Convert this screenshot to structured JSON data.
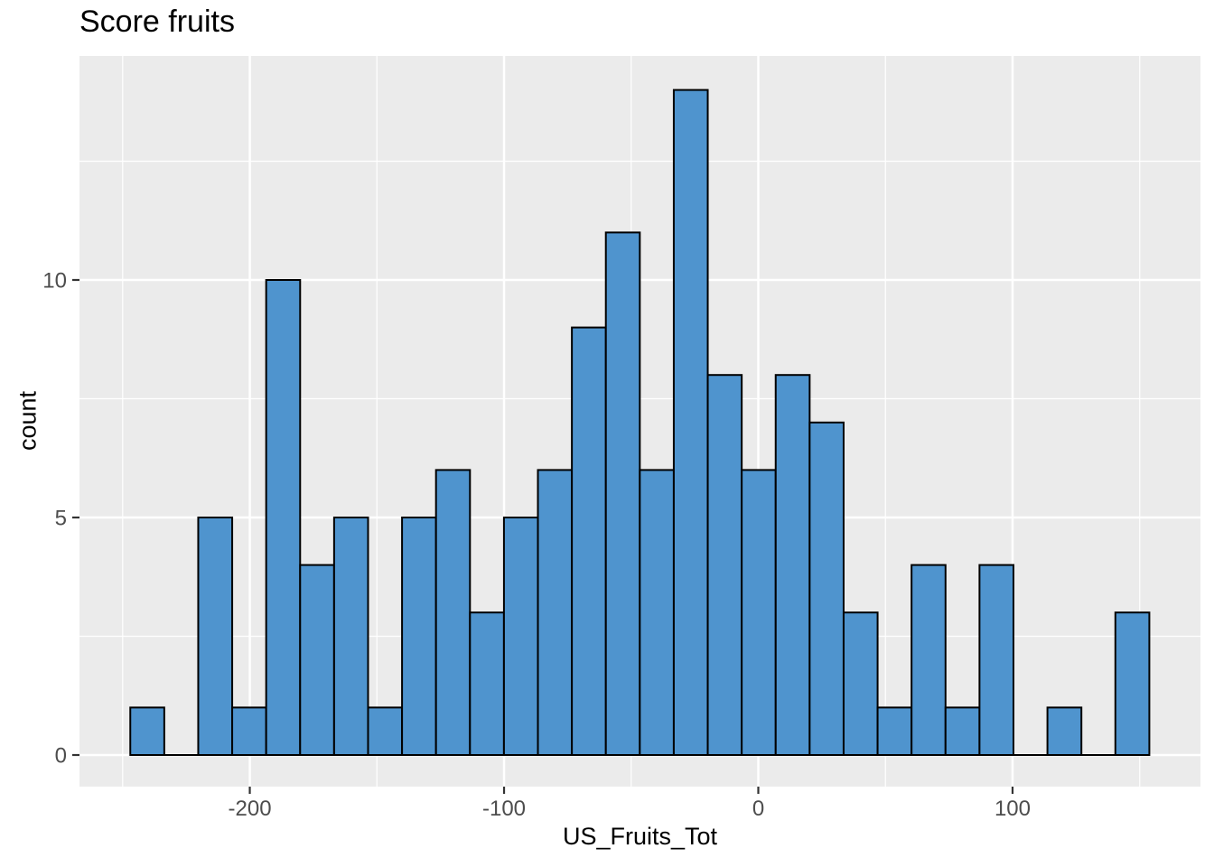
{
  "chart_data": {
    "type": "bar",
    "subtype": "histogram",
    "title": "Score fruits",
    "xlabel": "US_Fruits_Tot",
    "ylabel": "count",
    "bins": 30,
    "bin_start": -247,
    "bin_width": 13.36,
    "counts": [
      1,
      0,
      5,
      1,
      10,
      4,
      5,
      1,
      5,
      6,
      3,
      5,
      6,
      9,
      11,
      6,
      14,
      8,
      6,
      8,
      7,
      3,
      1,
      4,
      1,
      4,
      0,
      1,
      0,
      3
    ],
    "x_ticks": [
      -200,
      -100,
      0,
      100
    ],
    "x_minor_ticks": [
      -250,
      -150,
      -50,
      50,
      150
    ],
    "y_ticks": [
      0,
      5,
      10
    ],
    "y_minor_ticks": [
      2.5,
      7.5,
      12.5
    ],
    "xlim": [
      -267,
      174
    ],
    "ylim": [
      -0.7,
      14.7
    ],
    "grid": "major-and-minor",
    "legend": "none",
    "colors": {
      "bar_fill": "#4F94CE",
      "bar_stroke": "#000000",
      "panel_bg": "#EBEBEB",
      "grid": "#FFFFFF",
      "tick_label": "#4D4D4D",
      "tick_mark": "#333333",
      "title_text": "#000000",
      "page_bg": "#FFFFFF"
    }
  }
}
